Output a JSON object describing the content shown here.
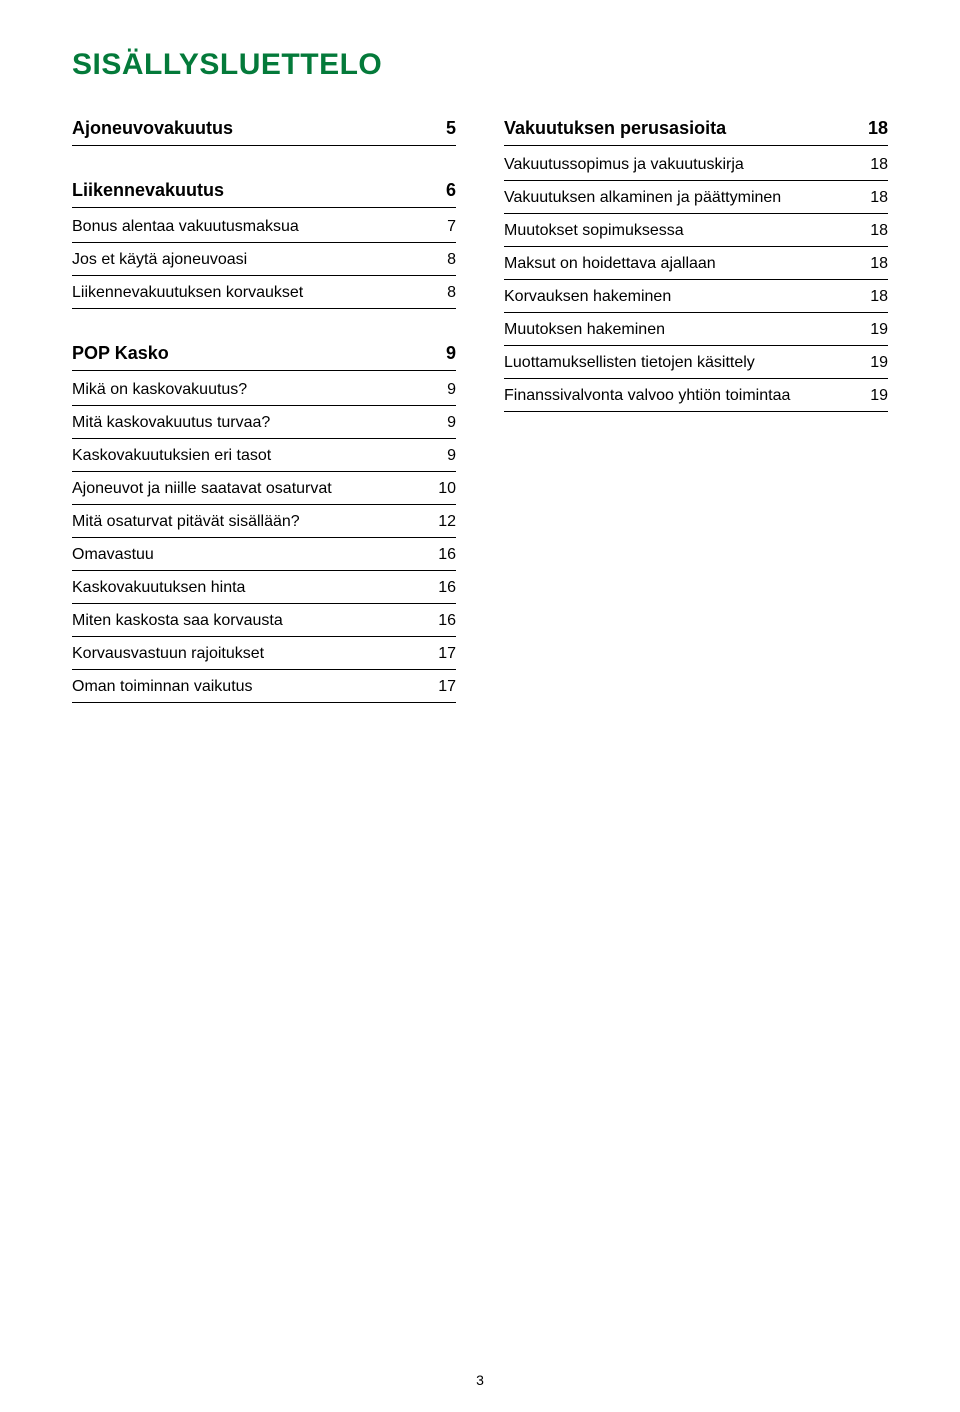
{
  "colors": {
    "background": "#ffffff",
    "text": "#000000",
    "rule": "#000000",
    "accent": "#047a3a"
  },
  "title": "SISÄLLYSLUETTELO",
  "page_number": "3",
  "left": {
    "sections": [
      {
        "heading": "Ajoneuvovakuutus",
        "page": "5",
        "rows": []
      },
      {
        "heading": "Liikennevakuutus",
        "page": "6",
        "rows": [
          {
            "label": "Bonus alentaa vakuutusmaksua",
            "page": "7"
          },
          {
            "label": "Jos et käytä ajoneuvoasi",
            "page": "8"
          },
          {
            "label": "Liikennevakuutuksen korvaukset",
            "page": "8"
          }
        ]
      },
      {
        "heading": "POP Kasko",
        "page": "9",
        "rows": [
          {
            "label": "Mikä on kaskovakuutus?",
            "page": "9"
          },
          {
            "label": "Mitä kaskovakuutus turvaa?",
            "page": "9"
          },
          {
            "label": "Kaskovakuutuksien eri tasot",
            "page": "9"
          },
          {
            "label": "Ajoneuvot ja niille saatavat osaturvat",
            "page": "10"
          },
          {
            "label": "Mitä osaturvat pitävät sisällään?",
            "page": "12"
          },
          {
            "label": "Omavastuu",
            "page": "16"
          },
          {
            "label": "Kaskovakuutuksen hinta",
            "page": "16"
          },
          {
            "label": "Miten kaskosta saa korvausta",
            "page": "16"
          },
          {
            "label": "Korvausvastuun rajoitukset",
            "page": "17"
          },
          {
            "label": "Oman toiminnan vaikutus",
            "page": "17"
          }
        ]
      }
    ]
  },
  "right": {
    "sections": [
      {
        "heading": "Vakuutuksen perusasioita",
        "page": "18",
        "rows": [
          {
            "label": "Vakuutussopimus ja vakuutuskirja",
            "page": "18"
          },
          {
            "label": "Vakuutuksen alkaminen ja päättyminen",
            "page": "18"
          },
          {
            "label": "Muutokset sopimuksessa",
            "page": "18"
          },
          {
            "label": "Maksut on hoidettava ajallaan",
            "page": "18"
          },
          {
            "label": "Korvauksen hakeminen",
            "page": "18"
          },
          {
            "label": "Muutoksen hakeminen",
            "page": "19"
          },
          {
            "label": "Luottamuksellisten tietojen käsittely",
            "page": "19"
          },
          {
            "label": "Finanssivalvonta valvoo yhtiön toimintaa",
            "page": "19"
          }
        ]
      }
    ]
  }
}
